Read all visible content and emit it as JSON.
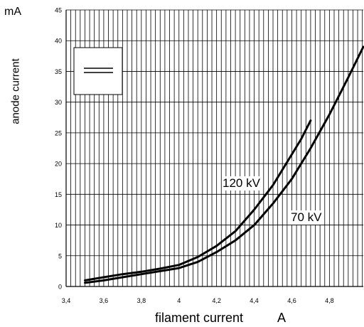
{
  "chart_data": {
    "type": "line",
    "ylabel": "anode current",
    "yunit": "mA",
    "xlabel": "filament current",
    "xunit": "A",
    "x_ticks": [
      "3,4",
      "3,6",
      "3,8",
      "4",
      "4,2",
      "4,4",
      "4,6",
      "4,8"
    ],
    "y_ticks": [
      "0",
      "5",
      "10",
      "15",
      "20",
      "25",
      "30",
      "35",
      "40",
      "45"
    ],
    "xlim": [
      3.4,
      4.98
    ],
    "ylim": [
      0,
      45
    ],
    "grid": true,
    "series": [
      {
        "name": "120 kV",
        "x": [
          3.5,
          3.6,
          3.7,
          3.8,
          3.9,
          4.0,
          4.1,
          4.2,
          4.3,
          4.4,
          4.5,
          4.6,
          4.65,
          4.7
        ],
        "y": [
          1.0,
          1.5,
          2.0,
          2.4,
          2.9,
          3.5,
          4.8,
          6.6,
          9.0,
          12.5,
          16.5,
          21.5,
          24.0,
          27.0
        ]
      },
      {
        "name": "70 kV",
        "x": [
          3.5,
          3.6,
          3.7,
          3.8,
          3.9,
          4.0,
          4.1,
          4.2,
          4.3,
          4.4,
          4.5,
          4.6,
          4.7,
          4.8,
          4.9,
          4.98
        ],
        "y": [
          0.6,
          1.0,
          1.5,
          2.0,
          2.5,
          3.0,
          4.0,
          5.6,
          7.5,
          10.0,
          13.5,
          17.5,
          22.5,
          28.0,
          34.0,
          39.0
        ]
      }
    ],
    "annotations": [
      "120 kV",
      "70 kV"
    ],
    "legend": "top-left",
    "axis_line_color": "#000000",
    "grid_color": "#000000",
    "series_color": "#000000"
  }
}
